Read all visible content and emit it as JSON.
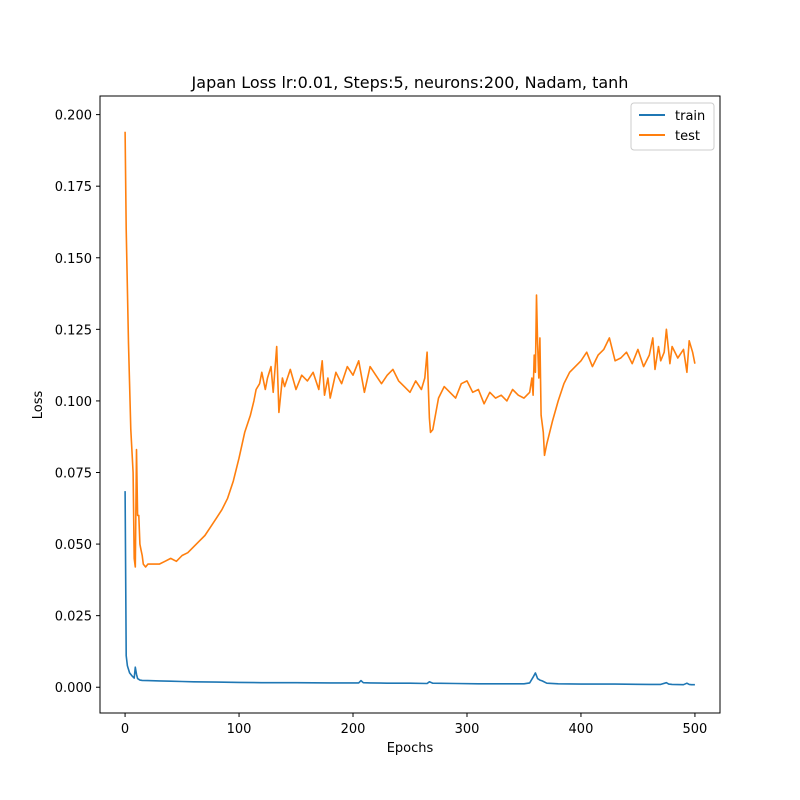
{
  "chart_data": {
    "type": "line",
    "title": "Japan Loss   lr:0.01, Steps:5, neurons:200, Nadam, tanh",
    "xlabel": "Epochs",
    "ylabel": "Loss",
    "xlim": [
      -22,
      522
    ],
    "ylim": [
      -0.009,
      0.2065
    ],
    "xticks": [
      0,
      100,
      200,
      300,
      400,
      500
    ],
    "yticks": [
      0.0,
      0.025,
      0.05,
      0.075,
      0.1,
      0.125,
      0.15,
      0.175,
      0.2
    ],
    "xtick_labels": [
      "0",
      "100",
      "200",
      "300",
      "400",
      "500"
    ],
    "ytick_labels": [
      "0.000",
      "0.025",
      "0.050",
      "0.075",
      "0.100",
      "0.125",
      "0.150",
      "0.175",
      "0.200"
    ],
    "grid": false,
    "legend_position": "upper right",
    "series": [
      {
        "name": "train",
        "color": "#1f77b4",
        "x": [
          0,
          1,
          2,
          4,
          6,
          8,
          9,
          10,
          11,
          13,
          15,
          20,
          30,
          40,
          50,
          60,
          80,
          100,
          120,
          150,
          180,
          205,
          207,
          209,
          215,
          230,
          250,
          265,
          267,
          270,
          290,
          310,
          330,
          350,
          355,
          358,
          360,
          362,
          364,
          366,
          370,
          380,
          400,
          430,
          460,
          470,
          475,
          477,
          480,
          490,
          493,
          495,
          497,
          500
        ],
        "y": [
          0.0685,
          0.011,
          0.0075,
          0.005,
          0.004,
          0.0032,
          0.007,
          0.0045,
          0.003,
          0.0025,
          0.0024,
          0.0023,
          0.0022,
          0.0021,
          0.002,
          0.0019,
          0.0018,
          0.0017,
          0.0016,
          0.0016,
          0.0015,
          0.0015,
          0.0023,
          0.0016,
          0.0015,
          0.0014,
          0.0014,
          0.0013,
          0.0019,
          0.0014,
          0.0013,
          0.0012,
          0.0012,
          0.0012,
          0.0015,
          0.0035,
          0.005,
          0.003,
          0.0025,
          0.0022,
          0.0014,
          0.0012,
          0.0011,
          0.0011,
          0.001,
          0.001,
          0.0016,
          0.0011,
          0.001,
          0.0009,
          0.0014,
          0.001,
          0.0009,
          0.0009
        ]
      },
      {
        "name": "test",
        "color": "#ff7f0e",
        "x": [
          0,
          1,
          3,
          5,
          7,
          8,
          9,
          10,
          11,
          12,
          13,
          14,
          15,
          16,
          18,
          20,
          25,
          30,
          35,
          40,
          45,
          50,
          55,
          60,
          65,
          70,
          75,
          80,
          85,
          90,
          95,
          100,
          105,
          110,
          113,
          115,
          118,
          120,
          123,
          125,
          128,
          130,
          133,
          135,
          138,
          140,
          145,
          150,
          155,
          160,
          165,
          170,
          173,
          175,
          178,
          180,
          185,
          190,
          195,
          200,
          205,
          210,
          215,
          220,
          225,
          230,
          235,
          240,
          245,
          250,
          255,
          260,
          263,
          265,
          267,
          268,
          270,
          275,
          280,
          285,
          290,
          295,
          300,
          305,
          310,
          315,
          320,
          325,
          330,
          335,
          340,
          345,
          350,
          355,
          357,
          358,
          359,
          360,
          361,
          362,
          363,
          364,
          365,
          366,
          367,
          368,
          370,
          375,
          380,
          385,
          390,
          395,
          400,
          405,
          410,
          415,
          420,
          425,
          430,
          435,
          440,
          445,
          450,
          455,
          460,
          463,
          465,
          468,
          470,
          473,
          475,
          478,
          480,
          485,
          490,
          493,
          495,
          498,
          500
        ],
        "y": [
          0.194,
          0.16,
          0.12,
          0.09,
          0.075,
          0.045,
          0.042,
          0.083,
          0.06,
          0.06,
          0.05,
          0.048,
          0.046,
          0.043,
          0.042,
          0.043,
          0.043,
          0.043,
          0.044,
          0.045,
          0.044,
          0.046,
          0.047,
          0.049,
          0.051,
          0.053,
          0.056,
          0.059,
          0.062,
          0.066,
          0.072,
          0.08,
          0.089,
          0.095,
          0.1,
          0.104,
          0.106,
          0.11,
          0.104,
          0.108,
          0.112,
          0.103,
          0.119,
          0.096,
          0.108,
          0.105,
          0.111,
          0.104,
          0.109,
          0.107,
          0.11,
          0.104,
          0.114,
          0.102,
          0.108,
          0.101,
          0.11,
          0.106,
          0.112,
          0.109,
          0.114,
          0.103,
          0.112,
          0.109,
          0.106,
          0.109,
          0.111,
          0.107,
          0.105,
          0.103,
          0.107,
          0.104,
          0.108,
          0.117,
          0.094,
          0.089,
          0.09,
          0.101,
          0.105,
          0.103,
          0.101,
          0.106,
          0.107,
          0.103,
          0.104,
          0.099,
          0.103,
          0.101,
          0.102,
          0.1,
          0.104,
          0.102,
          0.101,
          0.103,
          0.108,
          0.102,
          0.116,
          0.11,
          0.137,
          0.12,
          0.108,
          0.122,
          0.095,
          0.092,
          0.089,
          0.081,
          0.085,
          0.093,
          0.1,
          0.106,
          0.11,
          0.112,
          0.114,
          0.117,
          0.112,
          0.116,
          0.118,
          0.122,
          0.114,
          0.115,
          0.117,
          0.113,
          0.118,
          0.112,
          0.116,
          0.122,
          0.111,
          0.119,
          0.114,
          0.117,
          0.125,
          0.113,
          0.119,
          0.115,
          0.118,
          0.11,
          0.121,
          0.117,
          0.113
        ]
      }
    ]
  }
}
